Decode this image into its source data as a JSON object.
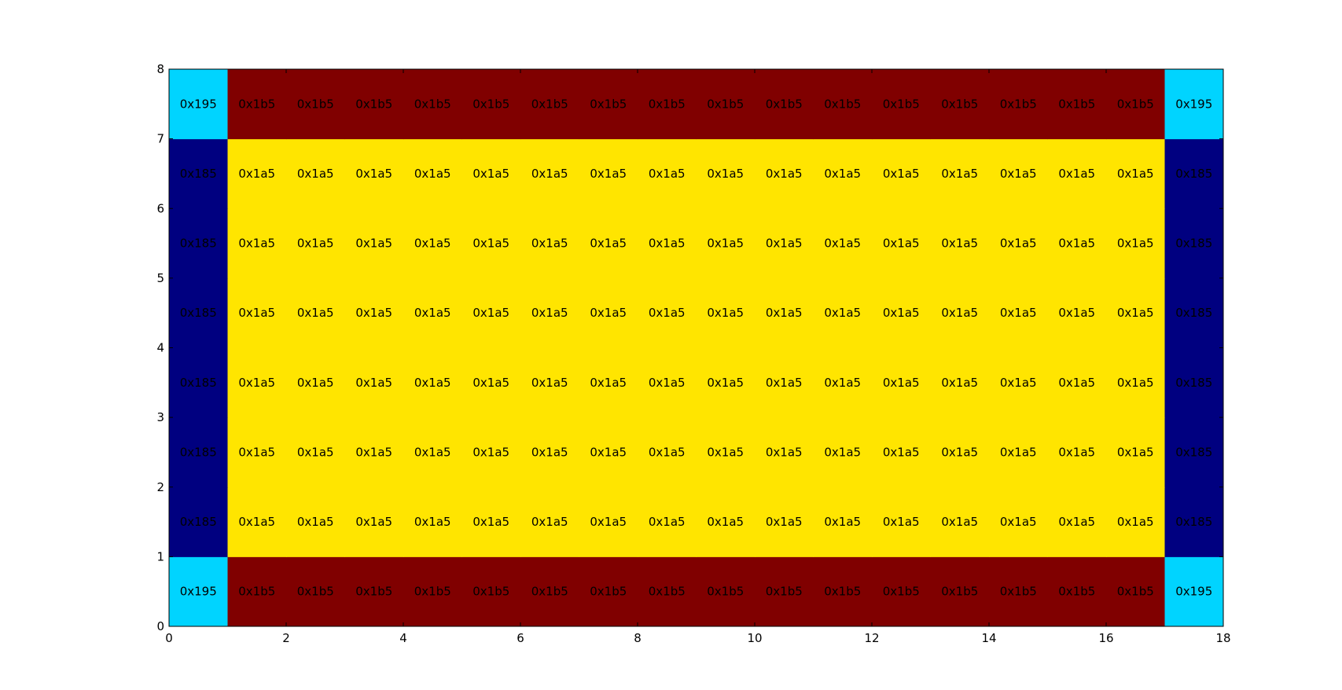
{
  "chart_data": {
    "type": "heatmap",
    "title": "",
    "xlabel": "",
    "ylabel": "",
    "xlim": [
      0,
      18
    ],
    "ylim": [
      0,
      8
    ],
    "x_ticks": [
      0,
      2,
      4,
      6,
      8,
      10,
      12,
      14,
      16,
      18
    ],
    "y_ticks": [
      0,
      1,
      2,
      3,
      4,
      5,
      6,
      7,
      8
    ],
    "x_tick_labels": [
      "0",
      "2",
      "4",
      "6",
      "8",
      "10",
      "12",
      "14",
      "16",
      "18"
    ],
    "y_tick_labels": [
      "0",
      "1",
      "2",
      "3",
      "4",
      "5",
      "6",
      "7",
      "8"
    ],
    "grid": false,
    "legend": "none",
    "columns": 18,
    "rows_bottom_to_top": [
      [
        "0x195",
        "0x1b5",
        "0x1b5",
        "0x1b5",
        "0x1b5",
        "0x1b5",
        "0x1b5",
        "0x1b5",
        "0x1b5",
        "0x1b5",
        "0x1b5",
        "0x1b5",
        "0x1b5",
        "0x1b5",
        "0x1b5",
        "0x1b5",
        "0x1b5",
        "0x195"
      ],
      [
        "0x185",
        "0x1a5",
        "0x1a5",
        "0x1a5",
        "0x1a5",
        "0x1a5",
        "0x1a5",
        "0x1a5",
        "0x1a5",
        "0x1a5",
        "0x1a5",
        "0x1a5",
        "0x1a5",
        "0x1a5",
        "0x1a5",
        "0x1a5",
        "0x1a5",
        "0x185"
      ],
      [
        "0x185",
        "0x1a5",
        "0x1a5",
        "0x1a5",
        "0x1a5",
        "0x1a5",
        "0x1a5",
        "0x1a5",
        "0x1a5",
        "0x1a5",
        "0x1a5",
        "0x1a5",
        "0x1a5",
        "0x1a5",
        "0x1a5",
        "0x1a5",
        "0x1a5",
        "0x185"
      ],
      [
        "0x185",
        "0x1a5",
        "0x1a5",
        "0x1a5",
        "0x1a5",
        "0x1a5",
        "0x1a5",
        "0x1a5",
        "0x1a5",
        "0x1a5",
        "0x1a5",
        "0x1a5",
        "0x1a5",
        "0x1a5",
        "0x1a5",
        "0x1a5",
        "0x1a5",
        "0x185"
      ],
      [
        "0x185",
        "0x1a5",
        "0x1a5",
        "0x1a5",
        "0x1a5",
        "0x1a5",
        "0x1a5",
        "0x1a5",
        "0x1a5",
        "0x1a5",
        "0x1a5",
        "0x1a5",
        "0x1a5",
        "0x1a5",
        "0x1a5",
        "0x1a5",
        "0x1a5",
        "0x185"
      ],
      [
        "0x185",
        "0x1a5",
        "0x1a5",
        "0x1a5",
        "0x1a5",
        "0x1a5",
        "0x1a5",
        "0x1a5",
        "0x1a5",
        "0x1a5",
        "0x1a5",
        "0x1a5",
        "0x1a5",
        "0x1a5",
        "0x1a5",
        "0x1a5",
        "0x1a5",
        "0x185"
      ],
      [
        "0x185",
        "0x1a5",
        "0x1a5",
        "0x1a5",
        "0x1a5",
        "0x1a5",
        "0x1a5",
        "0x1a5",
        "0x1a5",
        "0x1a5",
        "0x1a5",
        "0x1a5",
        "0x1a5",
        "0x1a5",
        "0x1a5",
        "0x1a5",
        "0x1a5",
        "0x185"
      ],
      [
        "0x195",
        "0x1b5",
        "0x1b5",
        "0x1b5",
        "0x1b5",
        "0x1b5",
        "0x1b5",
        "0x1b5",
        "0x1b5",
        "0x1b5",
        "0x1b5",
        "0x1b5",
        "0x1b5",
        "0x1b5",
        "0x1b5",
        "0x1b5",
        "0x1b5",
        "0x195"
      ]
    ],
    "value_colors": {
      "0x185": "#000080",
      "0x195": "#00d4ff",
      "0x1a5": "#ffe500",
      "0x1b5": "#800000"
    },
    "axis_color": "#000000",
    "background": "#ffffff"
  }
}
